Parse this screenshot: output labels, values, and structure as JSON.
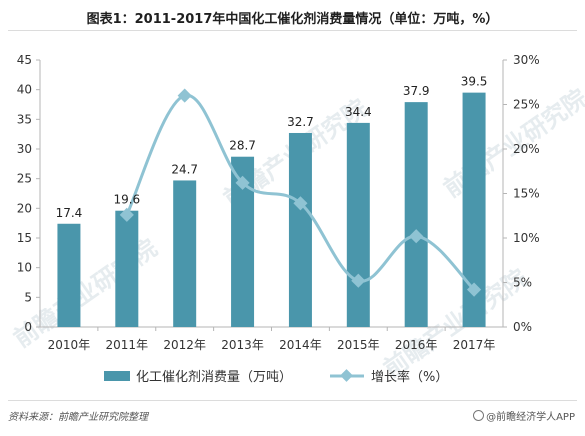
{
  "title": "图表1：2011-2017年中国化工催化剂消费量情况（单位：万吨，%）",
  "watermark": "前瞻产业研究院",
  "source": "资料来源：前瞻产业研究院整理",
  "credit": "@前瞻经济学人APP",
  "colors": {
    "bar": "#4a96ab",
    "line": "#8fc3d3",
    "axis": "#b5b5b5",
    "text": "#333333"
  },
  "chart_data": {
    "type": "bar",
    "categories": [
      "2010年",
      "2011年",
      "2012年",
      "2013年",
      "2014年",
      "2015年",
      "2016年",
      "2017年"
    ],
    "series": [
      {
        "name": "化工催化剂消费量（万吨）",
        "type": "bar",
        "axis": "left",
        "values": [
          17.4,
          19.6,
          24.7,
          28.7,
          32.7,
          34.4,
          37.9,
          39.5
        ]
      },
      {
        "name": "增长率（%）",
        "type": "line",
        "axis": "right",
        "values": [
          null,
          12.6,
          26.0,
          16.2,
          13.9,
          5.2,
          10.2,
          4.2
        ]
      }
    ],
    "data_labels": [
      "17.4",
      "19.6",
      "24.7",
      "28.7",
      "32.7",
      "34.4",
      "37.9",
      "39.5"
    ],
    "y_left": {
      "lim": [
        0,
        45
      ],
      "ticks": [
        "0",
        "5",
        "10",
        "15",
        "20",
        "25",
        "30",
        "35",
        "40",
        "45"
      ]
    },
    "y_right": {
      "lim": [
        0,
        30
      ],
      "ticks": [
        "0%",
        "5%",
        "10%",
        "15%",
        "20%",
        "25%",
        "30%"
      ]
    },
    "grid": false,
    "legend_position": "bottom"
  }
}
